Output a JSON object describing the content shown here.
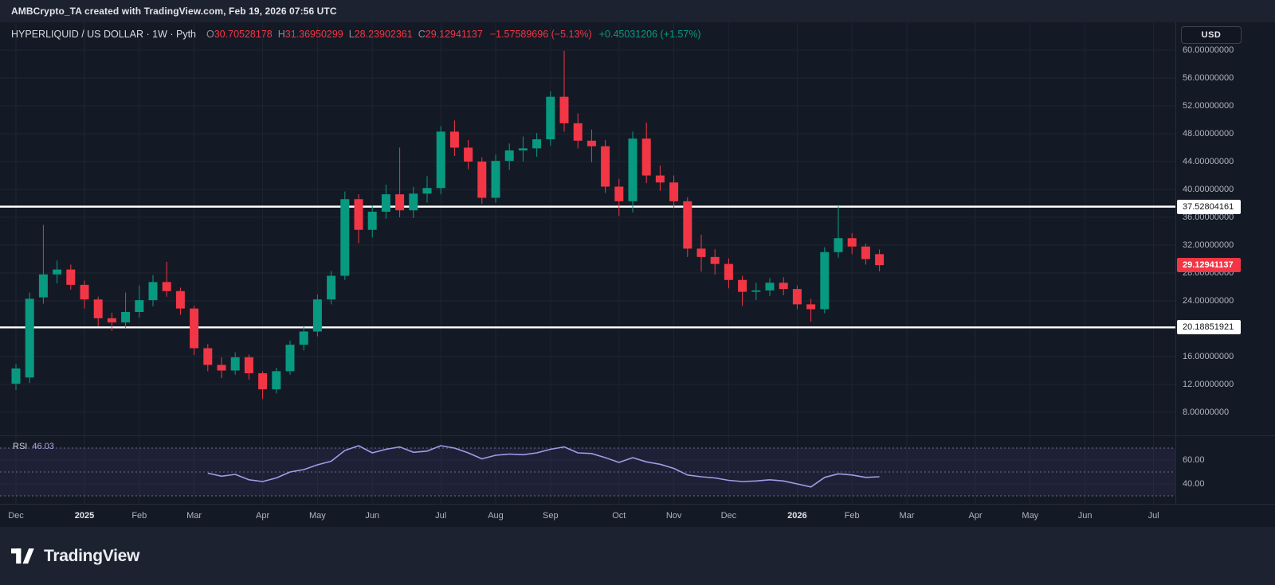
{
  "topbar": {
    "attribution": "AMBCrypto_TA created with TradingView.com, Feb 19, 2026 07:56 UTC"
  },
  "header": {
    "title": "HYPERLIQUID / US DOLLAR · 1W · Pyth",
    "ohlc": {
      "o_label": "O",
      "o": "30.70528178",
      "h_label": "H",
      "h": "31.36950299",
      "l_label": "L",
      "l": "28.23902361",
      "c_label": "C",
      "c": "29.12941137",
      "change": "−1.57589696 (−5.13%)",
      "change_secondary": "+0.45031206 (+1.57%)"
    },
    "currency_button": "USD"
  },
  "colors": {
    "up": "#089981",
    "down": "#F23645",
    "grid": "#1e2433",
    "level_line": "#FFFFFF",
    "rsi_line": "#A09CE8",
    "rsi_value_text": "#B6A7E6",
    "rsi_band_fill": "rgba(126,87,194,0.10)",
    "rsi_band_line": "#6F6A8E"
  },
  "chart_data": {
    "type": "candlestick",
    "title": "HYPERLIQUID / US DOLLAR",
    "interval": "1W",
    "data_source": "Pyth",
    "price_axis": {
      "min": 4.9,
      "max": 64.0,
      "grid_step": 4,
      "grid_labels": [
        {
          "value": 60,
          "label": "60.00000000"
        },
        {
          "value": 56,
          "label": "56.00000000"
        },
        {
          "value": 52,
          "label": "52.00000000"
        },
        {
          "value": 48,
          "label": "48.00000000"
        },
        {
          "value": 44,
          "label": "44.00000000"
        },
        {
          "value": 40,
          "label": "40.00000000"
        },
        {
          "value": 36,
          "label": "36.00000000"
        },
        {
          "value": 32,
          "label": "32.00000000"
        },
        {
          "value": 28,
          "label": "28.00000000"
        },
        {
          "value": 24,
          "label": "24.00000000"
        },
        {
          "value": 16,
          "label": "16.00000000"
        },
        {
          "value": 12,
          "label": "12.00000000"
        },
        {
          "value": 8,
          "label": "8.00000000"
        }
      ]
    },
    "levels": [
      {
        "value": 37.52804161,
        "label": "37.52804161",
        "type": "horizontal-line",
        "color": "#FFFFFF"
      },
      {
        "value": 20.18851921,
        "label": "20.18851921",
        "type": "horizontal-line",
        "color": "#FFFFFF"
      }
    ],
    "last_price": {
      "value": 29.12941137,
      "label": "29.12941137"
    },
    "x_ticks": [
      {
        "week": 0,
        "label": "Dec"
      },
      {
        "week": 5,
        "label": "2025",
        "year": true
      },
      {
        "week": 9,
        "label": "Feb"
      },
      {
        "week": 13,
        "label": "Mar"
      },
      {
        "week": 18,
        "label": "Apr"
      },
      {
        "week": 22,
        "label": "May"
      },
      {
        "week": 26,
        "label": "Jun"
      },
      {
        "week": 31,
        "label": "Jul"
      },
      {
        "week": 35,
        "label": "Aug"
      },
      {
        "week": 39,
        "label": "Sep"
      },
      {
        "week": 44,
        "label": "Oct"
      },
      {
        "week": 48,
        "label": "Nov"
      },
      {
        "week": 52,
        "label": "Dec"
      },
      {
        "week": 57,
        "label": "2026",
        "year": true
      },
      {
        "week": 61,
        "label": "Feb"
      },
      {
        "week": 65,
        "label": "Mar"
      },
      {
        "week": 70,
        "label": "Apr"
      },
      {
        "week": 74,
        "label": "May"
      },
      {
        "week": 78,
        "label": "Jun"
      },
      {
        "week": 83,
        "label": "Jul"
      }
    ],
    "candles_columns": [
      "date",
      "open",
      "high",
      "low",
      "close"
    ],
    "candles": [
      [
        "2024-12-02",
        12.1,
        14.9,
        11.2,
        14.3
      ],
      [
        "2024-12-09",
        13.0,
        25.2,
        12.2,
        24.3
      ],
      [
        "2024-12-16",
        24.5,
        34.9,
        23.6,
        27.8
      ],
      [
        "2024-12-23",
        27.8,
        29.8,
        26.5,
        28.5
      ],
      [
        "2024-12-30",
        28.5,
        29.2,
        25.6,
        26.3
      ],
      [
        "2025-01-06",
        26.3,
        26.9,
        22.9,
        24.2
      ],
      [
        "2025-01-13",
        24.2,
        24.6,
        20.3,
        21.5
      ],
      [
        "2025-01-20",
        21.5,
        22.3,
        19.7,
        20.9
      ],
      [
        "2025-01-27",
        20.9,
        25.2,
        20.1,
        22.4
      ],
      [
        "2025-02-03",
        22.4,
        26.2,
        21.6,
        24.1
      ],
      [
        "2025-02-10",
        24.1,
        27.7,
        23.2,
        26.7
      ],
      [
        "2025-02-17",
        26.7,
        29.6,
        24.6,
        25.4
      ],
      [
        "2025-02-24",
        25.4,
        25.9,
        22.0,
        22.9
      ],
      [
        "2025-03-03",
        22.9,
        23.3,
        16.2,
        17.2
      ],
      [
        "2025-03-10",
        17.2,
        17.8,
        13.9,
        14.8
      ],
      [
        "2025-03-17",
        14.8,
        15.9,
        12.9,
        14.0
      ],
      [
        "2025-03-24",
        14.0,
        16.6,
        13.4,
        15.9
      ],
      [
        "2025-03-31",
        15.9,
        16.3,
        12.7,
        13.6
      ],
      [
        "2025-04-07",
        13.6,
        13.9,
        9.9,
        11.3
      ],
      [
        "2025-04-14",
        11.3,
        14.4,
        10.7,
        13.9
      ],
      [
        "2025-04-21",
        13.9,
        18.3,
        13.4,
        17.7
      ],
      [
        "2025-04-28",
        17.7,
        20.4,
        16.9,
        19.6
      ],
      [
        "2025-05-05",
        19.6,
        24.9,
        18.9,
        24.2
      ],
      [
        "2025-05-12",
        24.2,
        28.3,
        23.5,
        27.6
      ],
      [
        "2025-05-19",
        27.6,
        39.7,
        27.0,
        38.6
      ],
      [
        "2025-05-26",
        38.6,
        39.3,
        32.3,
        34.2
      ],
      [
        "2025-06-02",
        34.2,
        37.7,
        33.1,
        36.8
      ],
      [
        "2025-06-09",
        36.8,
        40.7,
        35.8,
        39.3
      ],
      [
        "2025-06-16",
        39.3,
        46.0,
        36.0,
        37.0
      ],
      [
        "2025-06-23",
        37.0,
        40.4,
        35.9,
        39.4
      ],
      [
        "2025-06-30",
        39.4,
        41.9,
        38.1,
        40.2
      ],
      [
        "2025-07-07",
        40.2,
        49.1,
        39.3,
        48.3
      ],
      [
        "2025-07-14",
        48.3,
        49.9,
        44.8,
        46.0
      ],
      [
        "2025-07-21",
        46.0,
        47.1,
        42.9,
        44.0
      ],
      [
        "2025-07-28",
        44.0,
        44.6,
        37.9,
        38.8
      ],
      [
        "2025-08-04",
        38.8,
        45.0,
        38.1,
        44.1
      ],
      [
        "2025-08-11",
        44.1,
        46.6,
        42.8,
        45.6
      ],
      [
        "2025-08-18",
        45.6,
        47.6,
        44.0,
        45.9
      ],
      [
        "2025-08-25",
        45.9,
        48.1,
        44.7,
        47.2
      ],
      [
        "2025-09-01",
        47.2,
        54.1,
        46.3,
        53.3
      ],
      [
        "2025-09-08",
        53.3,
        59.9,
        48.3,
        49.5
      ],
      [
        "2025-09-15",
        49.5,
        50.9,
        45.9,
        47.0
      ],
      [
        "2025-09-22",
        47.0,
        48.6,
        43.9,
        46.2
      ],
      [
        "2025-09-29",
        46.2,
        47.1,
        39.5,
        40.4
      ],
      [
        "2025-10-06",
        40.4,
        41.5,
        36.2,
        38.3
      ],
      [
        "2025-10-13",
        38.3,
        48.3,
        36.7,
        47.3
      ],
      [
        "2025-10-20",
        47.3,
        49.6,
        40.9,
        42.0
      ],
      [
        "2025-10-27",
        42.0,
        43.4,
        39.8,
        41.0
      ],
      [
        "2025-11-03",
        41.0,
        42.0,
        37.3,
        38.3
      ],
      [
        "2025-11-10",
        38.3,
        38.9,
        30.3,
        31.5
      ],
      [
        "2025-11-17",
        31.5,
        33.5,
        28.2,
        30.3
      ],
      [
        "2025-11-24",
        30.3,
        31.4,
        27.8,
        29.3
      ],
      [
        "2025-12-01",
        29.3,
        30.1,
        25.8,
        27.0
      ],
      [
        "2025-12-08",
        27.0,
        27.6,
        23.3,
        25.3
      ],
      [
        "2025-12-15",
        25.3,
        26.6,
        24.1,
        25.5
      ],
      [
        "2025-12-22",
        25.5,
        27.3,
        24.7,
        26.6
      ],
      [
        "2025-12-29",
        26.6,
        27.4,
        24.8,
        25.7
      ],
      [
        "2026-01-05",
        25.7,
        26.2,
        22.8,
        23.5
      ],
      [
        "2026-01-12",
        23.5,
        24.3,
        21.0,
        22.8
      ],
      [
        "2026-01-19",
        22.8,
        31.7,
        22.2,
        31.0
      ],
      [
        "2026-01-26",
        31.0,
        37.6,
        30.2,
        33.0
      ],
      [
        "2026-02-02",
        33.0,
        33.7,
        30.7,
        31.8
      ],
      [
        "2026-02-09",
        31.8,
        32.2,
        29.2,
        30.0
      ],
      [
        "2026-02-16",
        30.70528178,
        31.36950299,
        28.23902361,
        29.12941137
      ]
    ],
    "rsi": {
      "label": "RSI",
      "value_label": "46.03",
      "value": 46.03,
      "start_week": 14,
      "values": [
        49,
        46.5,
        48,
        43.5,
        42,
        45,
        50,
        52,
        56,
        59,
        68,
        72,
        66,
        69,
        71,
        66.5,
        67.5,
        72,
        70,
        66,
        61,
        64,
        65,
        64.5,
        66,
        69,
        71,
        66,
        65.5,
        62,
        58,
        62,
        58.5,
        56.5,
        53,
        47.5,
        46,
        45,
        43,
        42,
        42.5,
        43.5,
        42.5,
        40,
        37.5,
        45.5,
        48.5,
        47.5,
        45.5,
        46.03
      ],
      "bands": [
        70,
        50,
        30
      ],
      "axis_labels": [
        {
          "value": 60,
          "label": "60.00"
        },
        {
          "value": 40,
          "label": "40.00"
        }
      ]
    }
  },
  "footer": {
    "brand": "TradingView"
  }
}
